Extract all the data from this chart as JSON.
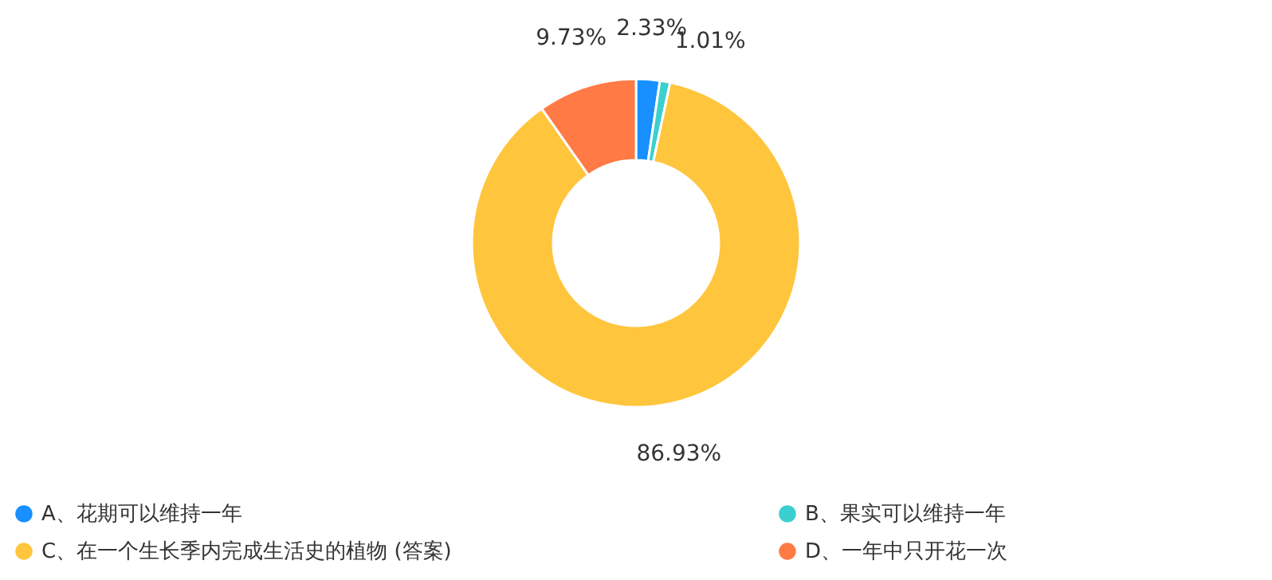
{
  "chart_data": {
    "type": "donut",
    "categories": [
      "A、花期可以维持一年",
      "B、果实可以维持一年",
      "C、在一个生长季内完成生活史的植物 (答案)",
      "D、一年中只开花一次"
    ],
    "values": [
      2.33,
      1.01,
      86.93,
      9.73
    ],
    "colors": [
      "#1890ff",
      "#3ccfcf",
      "#ffc53d",
      "#ff7a45"
    ],
    "value_labels": [
      "2.33%",
      "1.01%",
      "86.93%",
      "9.73%"
    ],
    "legend": "bottom"
  }
}
